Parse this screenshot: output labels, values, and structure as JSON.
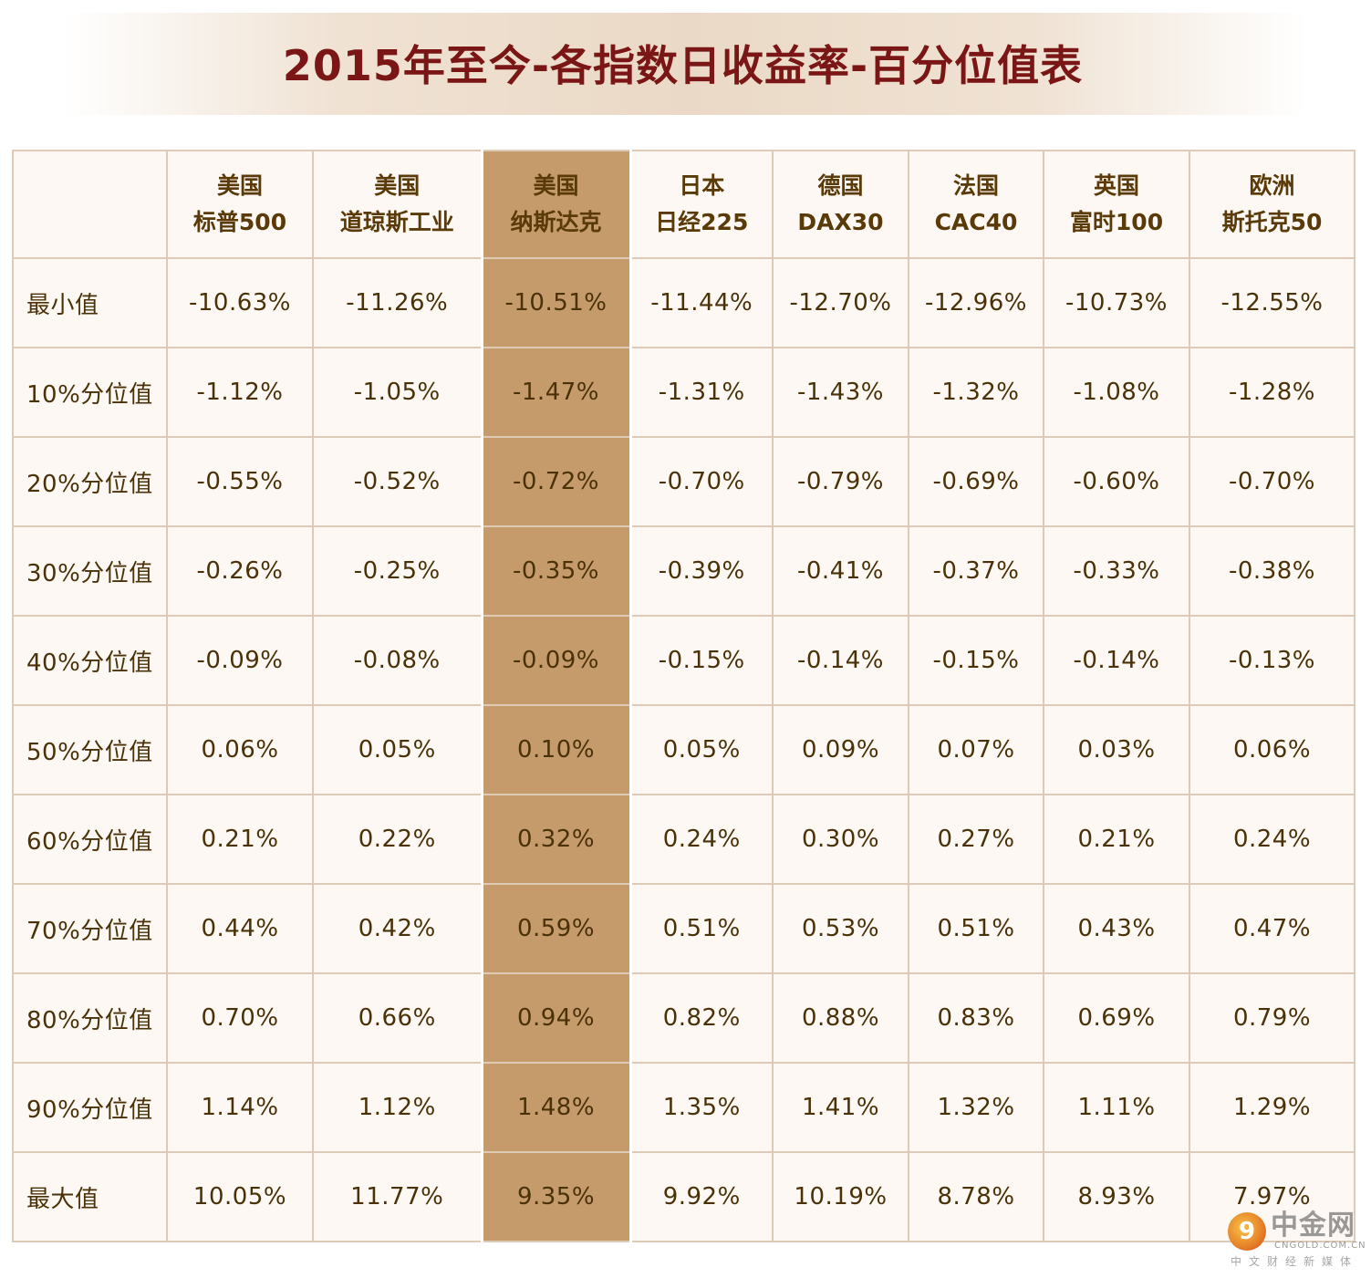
{
  "title": "2015年至今-各指数日收益率-百分位值表",
  "columns": [
    {
      "line1": "",
      "line2": ""
    },
    {
      "line1": "美国",
      "line2": "标普500"
    },
    {
      "line1": "美国",
      "line2": "道琼斯工业"
    },
    {
      "line1": "美国",
      "line2": "纳斯达克"
    },
    {
      "line1": "日本",
      "line2": "日经225"
    },
    {
      "line1": "德国",
      "line2": "DAX30"
    },
    {
      "line1": "法国",
      "line2": "CAC40"
    },
    {
      "line1": "英国",
      "line2": "富时100"
    },
    {
      "line1": "欧洲",
      "line2": "斯托克50"
    }
  ],
  "highlight_column_index": 3,
  "colors": {
    "title": "#7b1616",
    "highlight": "#c59b6c",
    "cell_bg": "#fdf8f3",
    "grid_line": "#ddcbb8",
    "text": "#4a3108"
  },
  "rows": [
    {
      "label": "最小值",
      "values": [
        "-10.63%",
        "-11.26%",
        "-10.51%",
        "-11.44%",
        "-12.70%",
        "-12.96%",
        "-10.73%",
        "-12.55%"
      ]
    },
    {
      "label": "10%分位值",
      "values": [
        "-1.12%",
        "-1.05%",
        "-1.47%",
        "-1.31%",
        "-1.43%",
        "-1.32%",
        "-1.08%",
        "-1.28%"
      ]
    },
    {
      "label": "20%分位值",
      "values": [
        "-0.55%",
        "-0.52%",
        "-0.72%",
        "-0.70%",
        "-0.79%",
        "-0.69%",
        "-0.60%",
        "-0.70%"
      ]
    },
    {
      "label": "30%分位值",
      "values": [
        "-0.26%",
        "-0.25%",
        "-0.35%",
        "-0.39%",
        "-0.41%",
        "-0.37%",
        "-0.33%",
        "-0.38%"
      ]
    },
    {
      "label": "40%分位值",
      "values": [
        "-0.09%",
        "-0.08%",
        "-0.09%",
        "-0.15%",
        "-0.14%",
        "-0.15%",
        "-0.14%",
        "-0.13%"
      ]
    },
    {
      "label": "50%分位值",
      "values": [
        "0.06%",
        "0.05%",
        "0.10%",
        "0.05%",
        "0.09%",
        "0.07%",
        "0.03%",
        "0.06%"
      ]
    },
    {
      "label": "60%分位值",
      "values": [
        "0.21%",
        "0.22%",
        "0.32%",
        "0.24%",
        "0.30%",
        "0.27%",
        "0.21%",
        "0.24%"
      ]
    },
    {
      "label": "70%分位值",
      "values": [
        "0.44%",
        "0.42%",
        "0.59%",
        "0.51%",
        "0.53%",
        "0.51%",
        "0.43%",
        "0.47%"
      ]
    },
    {
      "label": "80%分位值",
      "values": [
        "0.70%",
        "0.66%",
        "0.94%",
        "0.82%",
        "0.88%",
        "0.83%",
        "0.69%",
        "0.79%"
      ]
    },
    {
      "label": "90%分位值",
      "values": [
        "1.14%",
        "1.12%",
        "1.48%",
        "1.35%",
        "1.41%",
        "1.32%",
        "1.11%",
        "1.29%"
      ]
    },
    {
      "label": "最大值",
      "values": [
        "10.05%",
        "11.77%",
        "9.35%",
        "9.92%",
        "10.19%",
        "8.78%",
        "8.93%",
        "7.97%"
      ]
    }
  ],
  "watermark": {
    "logo_glyph": "9",
    "brand": "中金网",
    "url": "CNGOLD.COM.CN",
    "tagline": "中文财经新媒体"
  }
}
